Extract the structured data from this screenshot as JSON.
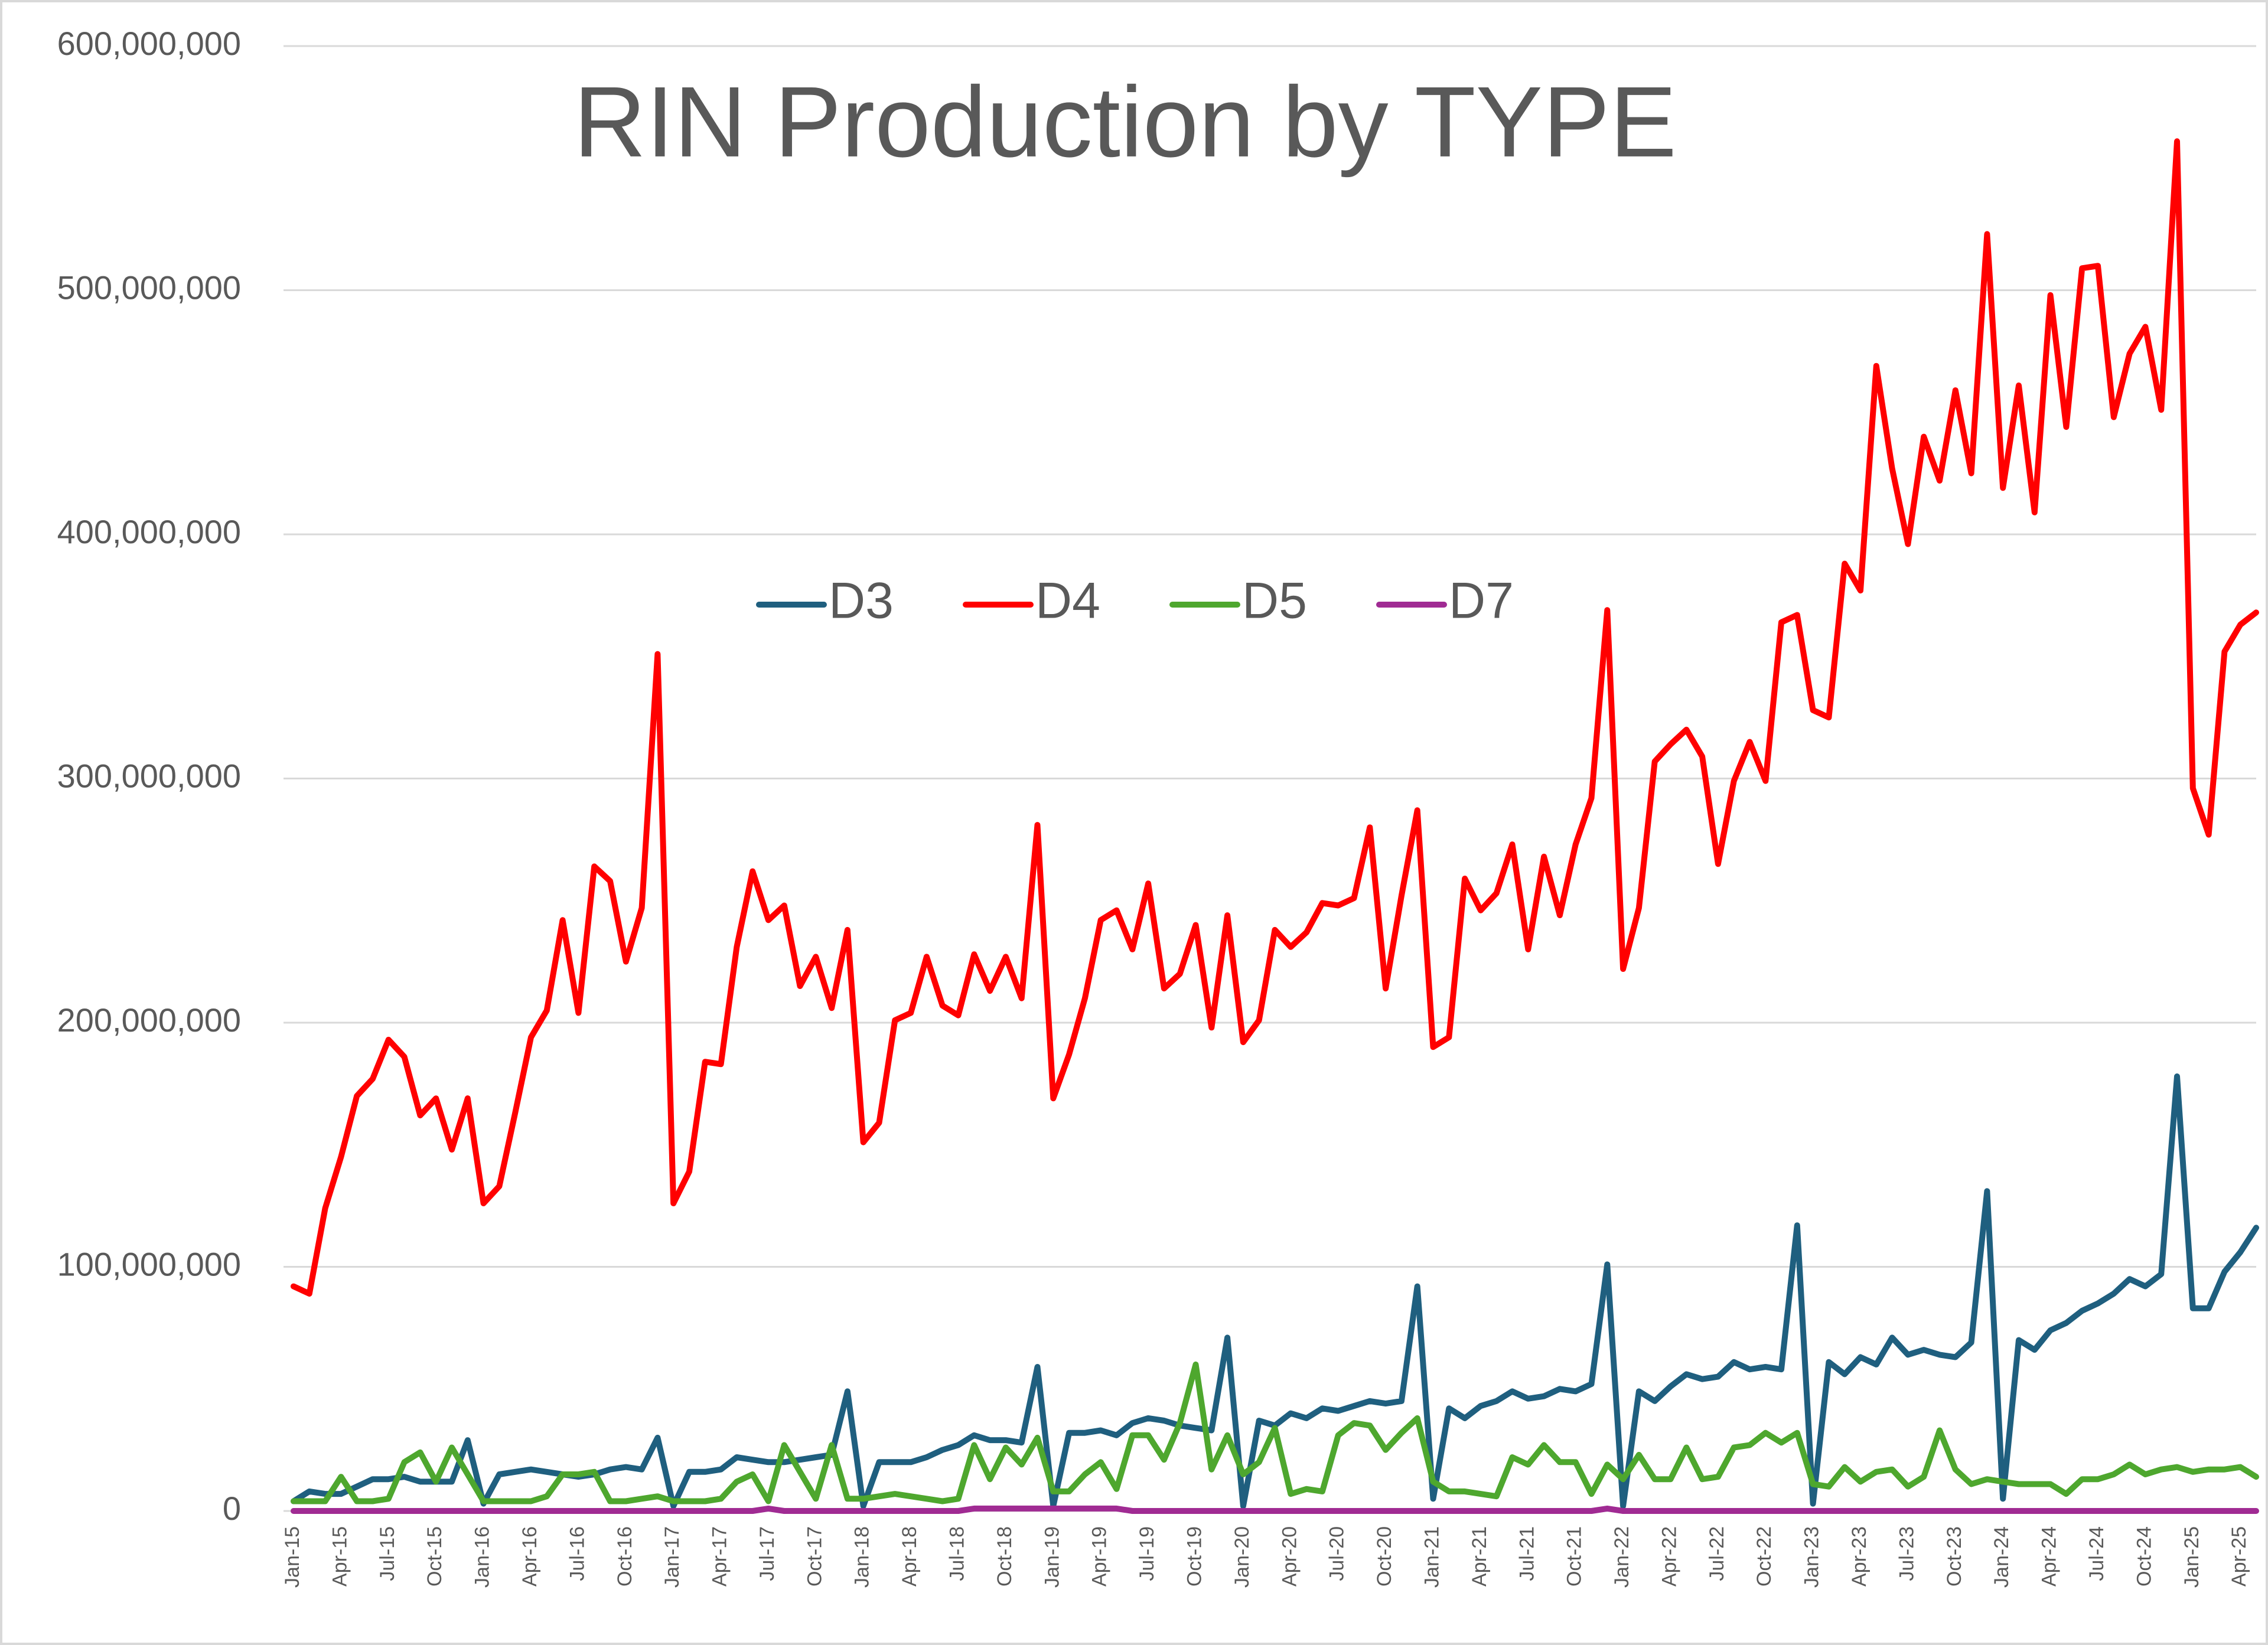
{
  "chart_data": {
    "type": "line",
    "title": "RIN Production by TYPE",
    "categories": [
      "Jan-15",
      null,
      null,
      "Apr-15",
      null,
      null,
      "Jul-15",
      null,
      null,
      "Oct-15",
      null,
      null,
      "Jan-16",
      null,
      null,
      "Apr-16",
      null,
      null,
      "Jul-16",
      null,
      null,
      "Oct-16",
      null,
      null,
      "Jan-17",
      null,
      null,
      "Apr-17",
      null,
      null,
      "Jul-17",
      null,
      null,
      "Oct-17",
      null,
      null,
      "Jan-18",
      null,
      null,
      "Apr-18",
      null,
      null,
      "Jul-18",
      null,
      null,
      "Oct-18",
      null,
      null,
      "Jan-19",
      null,
      null,
      "Apr-19",
      null,
      null,
      "Jul-19",
      null,
      null,
      "Oct-19",
      null,
      null,
      "Jan-20",
      null,
      null,
      "Apr-20",
      null,
      null,
      "Jul-20",
      null,
      null,
      "Oct-20",
      null,
      null,
      "Jan-21",
      null,
      null,
      "Apr-21",
      null,
      null,
      "Jul-21",
      null,
      null,
      "Oct-21",
      null,
      null,
      "Jan-22",
      null,
      null,
      "Apr-22",
      null,
      null,
      "Jul-22",
      null,
      null,
      "Oct-22",
      null,
      null,
      "Jan-23",
      null,
      null,
      "Apr-23",
      null,
      null,
      "Jul-23",
      null,
      null,
      "Oct-23",
      null,
      null,
      "Jan-24",
      null,
      null,
      "Apr-24",
      null,
      null,
      "Jul-24",
      null,
      null,
      "Oct-24",
      null,
      null,
      "Jan-25",
      null,
      null,
      "Apr-25",
      null
    ],
    "series": [
      {
        "name": "D3",
        "color": "#1f5f7f",
        "values": [
          4000000,
          8000000,
          7000000,
          7000000,
          10000000,
          13000000,
          13000000,
          14000000,
          12000000,
          12000000,
          12000000,
          29000000,
          3000000,
          15000000,
          16000000,
          17000000,
          16000000,
          15000000,
          14000000,
          15000000,
          17000000,
          18000000,
          17000000,
          30000000,
          2000000,
          16000000,
          16000000,
          17000000,
          22000000,
          21000000,
          20000000,
          20000000,
          21000000,
          22000000,
          23000000,
          49000000,
          2000000,
          20000000,
          20000000,
          20000000,
          22000000,
          25000000,
          27000000,
          31000000,
          29000000,
          29000000,
          28000000,
          59000000,
          2000000,
          32000000,
          32000000,
          33000000,
          31000000,
          36000000,
          38000000,
          37000000,
          35000000,
          34000000,
          33000000,
          71000000,
          2000000,
          37000000,
          35000000,
          40000000,
          38000000,
          42000000,
          41000000,
          43000000,
          45000000,
          44000000,
          45000000,
          92000000,
          5000000,
          42000000,
          38000000,
          43000000,
          45000000,
          49000000,
          46000000,
          47000000,
          50000000,
          49000000,
          52000000,
          101000000,
          2000000,
          49000000,
          45000000,
          51000000,
          56000000,
          54000000,
          55000000,
          61000000,
          58000000,
          59000000,
          58000000,
          117000000,
          3000000,
          61000000,
          56000000,
          63000000,
          60000000,
          71000000,
          64000000,
          66000000,
          64000000,
          63000000,
          69000000,
          131000000,
          5000000,
          70000000,
          66000000,
          74000000,
          77000000,
          82000000,
          85000000,
          89000000,
          95000000,
          92000000,
          97000000,
          178000000,
          83000000,
          83000000,
          98000000,
          106000000,
          116000000
        ]
      },
      {
        "name": "D4",
        "color": "#ff0000",
        "values": [
          92000000,
          89000000,
          124000000,
          145000000,
          170000000,
          177000000,
          193000000,
          186000000,
          162000000,
          169000000,
          148000000,
          169000000,
          126000000,
          133000000,
          163000000,
          194000000,
          205000000,
          242000000,
          204000000,
          264000000,
          258000000,
          225000000,
          247000000,
          351000000,
          126000000,
          139000000,
          184000000,
          183000000,
          231000000,
          262000000,
          242000000,
          248000000,
          215000000,
          227000000,
          206000000,
          238000000,
          151000000,
          159000000,
          201000000,
          204000000,
          227000000,
          207000000,
          203000000,
          228000000,
          213000000,
          227000000,
          210000000,
          281000000,
          169000000,
          187000000,
          210000000,
          242000000,
          246000000,
          230000000,
          257000000,
          214000000,
          220000000,
          240000000,
          198000000,
          244000000,
          192000000,
          201000000,
          238000000,
          231000000,
          237000000,
          249000000,
          248000000,
          251000000,
          280000000,
          214000000,
          252000000,
          287000000,
          190000000,
          194000000,
          259000000,
          246000000,
          253000000,
          273000000,
          230000000,
          268000000,
          244000000,
          273000000,
          292000000,
          369000000,
          222000000,
          247000000,
          307000000,
          314000000,
          320000000,
          309000000,
          265000000,
          299000000,
          315000000,
          299000000,
          364000000,
          367000000,
          328000000,
          325000000,
          388000000,
          377000000,
          469000000,
          427000000,
          396000000,
          440000000,
          422000000,
          459000000,
          425000000,
          523000000,
          419000000,
          461000000,
          409000000,
          498000000,
          444000000,
          509000000,
          510000000,
          448000000,
          474000000,
          485000000,
          451000000,
          561000000,
          296000000,
          277000000,
          352000000,
          363000000,
          368000000
        ]
      },
      {
        "name": "D5",
        "color": "#4ea72e",
        "values": [
          4000000,
          4000000,
          4000000,
          14000000,
          4000000,
          4000000,
          5000000,
          20000000,
          24000000,
          12000000,
          26000000,
          15000000,
          4000000,
          4000000,
          4000000,
          4000000,
          6000000,
          15000000,
          15000000,
          16000000,
          4000000,
          4000000,
          5000000,
          6000000,
          4000000,
          4000000,
          4000000,
          5000000,
          12000000,
          15000000,
          4000000,
          27000000,
          16000000,
          5000000,
          27000000,
          5000000,
          5000000,
          6000000,
          7000000,
          6000000,
          5000000,
          4000000,
          5000000,
          27000000,
          13000000,
          26000000,
          19000000,
          30000000,
          8000000,
          8000000,
          15000000,
          20000000,
          9000000,
          31000000,
          31000000,
          21000000,
          36000000,
          60000000,
          17000000,
          31000000,
          15000000,
          20000000,
          34000000,
          7000000,
          9000000,
          8000000,
          31000000,
          36000000,
          35000000,
          25000000,
          32000000,
          38000000,
          12000000,
          8000000,
          8000000,
          7000000,
          6000000,
          22000000,
          19000000,
          27000000,
          20000000,
          20000000,
          7000000,
          19000000,
          13000000,
          23000000,
          13000000,
          13000000,
          26000000,
          13000000,
          14000000,
          26000000,
          27000000,
          32000000,
          28000000,
          32000000,
          11000000,
          10000000,
          18000000,
          12000000,
          16000000,
          17000000,
          10000000,
          14000000,
          33000000,
          17000000,
          11000000,
          13000000,
          12000000,
          11000000,
          11000000,
          11000000,
          7000000,
          13000000,
          13000000,
          15000000,
          19000000,
          15000000,
          17000000,
          18000000,
          16000000,
          17000000,
          17000000,
          18000000,
          14000000
        ]
      },
      {
        "name": "D7",
        "color": "#a02b93",
        "values": [
          0,
          0,
          0,
          0,
          0,
          0,
          0,
          0,
          0,
          0,
          0,
          0,
          0,
          0,
          0,
          0,
          0,
          0,
          0,
          0,
          0,
          0,
          0,
          0,
          0,
          0,
          0,
          0,
          0,
          0,
          1000000,
          0,
          0,
          0,
          0,
          0,
          0,
          0,
          0,
          0,
          0,
          0,
          0,
          1000000,
          1000000,
          1000000,
          1000000,
          1000000,
          1000000,
          1000000,
          1000000,
          1000000,
          1000000,
          0,
          0,
          0,
          0,
          0,
          0,
          0,
          0,
          0,
          0,
          0,
          0,
          0,
          0,
          0,
          0,
          0,
          0,
          0,
          0,
          0,
          0,
          0,
          0,
          0,
          0,
          0,
          0,
          0,
          0,
          1000000,
          0,
          0,
          0,
          0,
          0,
          0,
          0,
          0,
          0,
          0,
          0,
          0,
          0,
          0,
          0,
          0,
          0,
          0,
          0,
          0,
          0,
          0,
          0,
          0,
          0,
          0,
          0,
          0,
          0,
          0,
          0,
          0,
          0,
          0,
          0,
          0,
          0,
          0,
          0,
          0,
          0
        ]
      }
    ],
    "ylim": [
      0,
      600000000
    ],
    "yticks": [
      0,
      {
        "value": 100000000,
        "label": "100,000,000"
      },
      {
        "value": 200000000,
        "label": "200,000,000"
      },
      {
        "value": 300000000,
        "label": "300,000,000"
      },
      {
        "value": 400000000,
        "label": "400,000,000"
      },
      {
        "value": 500000000,
        "label": "500,000,000"
      },
      {
        "value": 600000000,
        "label": "600,000,000"
      }
    ],
    "grid": true,
    "legend": "top"
  }
}
